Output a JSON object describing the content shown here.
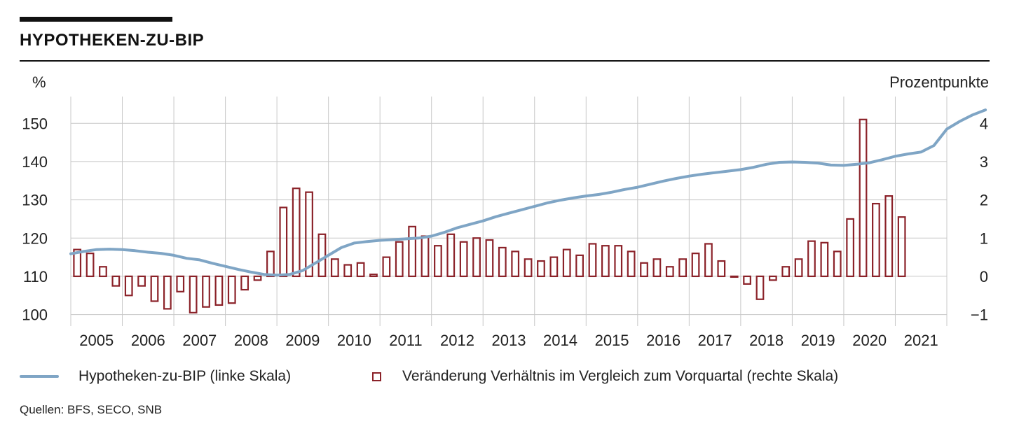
{
  "chart_data": {
    "type": "bar+line",
    "title": "HYPOTHEKEN-ZU-BIP",
    "left_axis": {
      "label": "%",
      "ylim": [
        97,
        157
      ],
      "ticks": [
        100,
        110,
        120,
        130,
        140,
        150
      ]
    },
    "right_axis": {
      "label": "Prozentpunkte",
      "ylim": [
        -1.3,
        4.7
      ],
      "ticks": [
        -1,
        0,
        1,
        2,
        3,
        4
      ],
      "tick_labels": [
        "−1",
        "0",
        "1",
        "2",
        "3",
        "4"
      ]
    },
    "years": [
      "2005",
      "2006",
      "2007",
      "2008",
      "2009",
      "2010",
      "2011",
      "2012",
      "2013",
      "2014",
      "2015",
      "2016",
      "2017",
      "2018",
      "2019",
      "2020",
      "2021"
    ],
    "x_start": 2004.75,
    "x_end": 2021.75,
    "grid": true,
    "colors": {
      "line": "#7fa5c5",
      "bar": "#8b2229",
      "grid": "#c8c8c8"
    },
    "series": [
      {
        "name": "Hypotheken-zu-BIP (linke Skala)",
        "type": "line",
        "axis": "left",
        "x_start": 2004.75,
        "step": 0.25,
        "values": [
          115.9,
          116.5,
          117.0,
          117.1,
          117.0,
          116.7,
          116.3,
          116.0,
          115.5,
          114.7,
          114.3,
          113.4,
          112.6,
          111.8,
          111.1,
          110.5,
          110.3,
          110.5,
          111.5,
          113.5,
          115.5,
          117.5,
          118.7,
          119.1,
          119.4,
          119.6,
          119.8,
          120.0,
          120.5,
          121.5,
          122.7,
          123.6,
          124.5,
          125.6,
          126.5,
          127.4,
          128.3,
          129.2,
          129.9,
          130.5,
          131.0,
          131.4,
          132.0,
          132.7,
          133.3,
          134.1,
          134.9,
          135.6,
          136.2,
          136.7,
          137.1,
          137.5,
          137.9,
          138.5,
          139.3,
          139.8,
          139.9,
          139.8,
          139.6,
          139.1,
          139.0,
          139.3,
          139.7,
          140.5,
          141.4,
          142.0,
          142.5,
          144.2,
          148.5,
          150.5,
          152.2,
          153.5
        ]
      },
      {
        "name": "Veränderung Verhältnis im Vergleich zum Vorquartal (rechte Skala)",
        "type": "bar",
        "axis": "right",
        "x_start": 2004.875,
        "step": 0.25,
        "values": [
          0.7,
          0.6,
          0.25,
          -0.25,
          -0.5,
          -0.25,
          -0.65,
          -0.85,
          -0.4,
          -0.95,
          -0.8,
          -0.75,
          -0.7,
          -0.35,
          -0.1,
          0.65,
          1.8,
          2.3,
          2.2,
          1.1,
          0.45,
          0.3,
          0.35,
          0.05,
          0.5,
          0.9,
          1.3,
          1.05,
          0.8,
          1.1,
          0.9,
          1.0,
          0.95,
          0.75,
          0.65,
          0.45,
          0.4,
          0.5,
          0.7,
          0.55,
          0.85,
          0.8,
          0.8,
          0.65,
          0.35,
          0.45,
          0.25,
          0.45,
          0.6,
          0.85,
          0.4,
          0.0,
          -0.2,
          -0.6,
          -0.1,
          0.25,
          0.45,
          0.92,
          0.88,
          0.65,
          1.5,
          4.1,
          1.9,
          2.1,
          1.55
        ]
      }
    ],
    "legend": [
      {
        "label": "Hypotheken-zu-BIP (linke Skala)",
        "style": "line"
      },
      {
        "label": "Veränderung Verhältnis im Vergleich zum Vorquartal (rechte Skala)",
        "style": "hollow-bar"
      }
    ],
    "legend_position": "bottom"
  },
  "source": "Quellen: BFS, SECO, SNB"
}
